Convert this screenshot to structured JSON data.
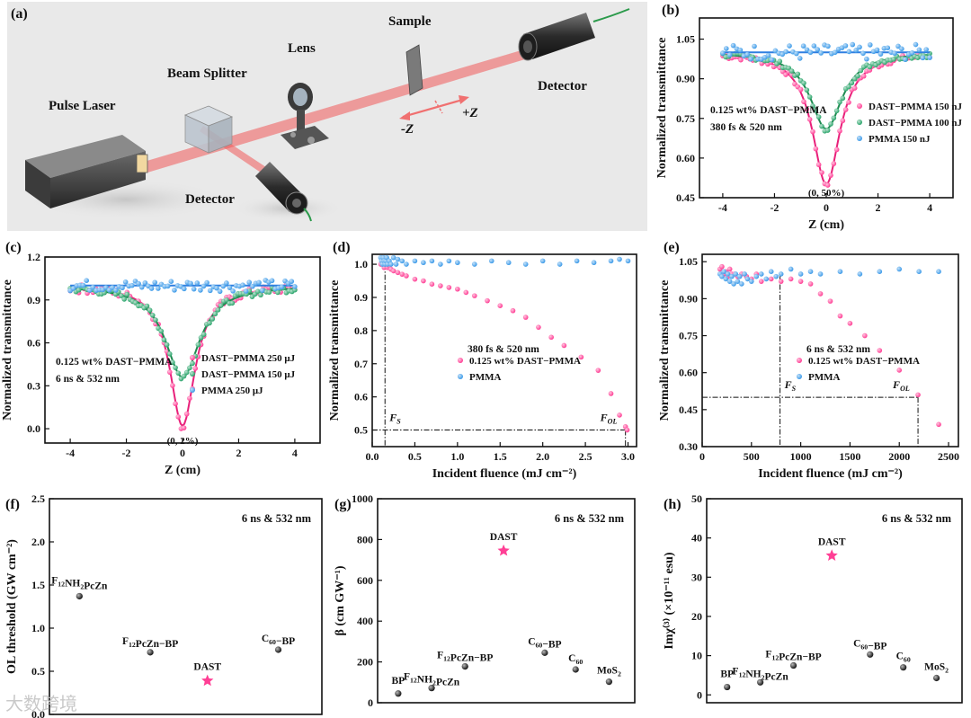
{
  "colors": {
    "pink": "#ff3f95",
    "green": "#2aa56b",
    "blue": "#3d9be9",
    "black": "#151515",
    "fit_pink": "#e8207a",
    "fit_green": "#1e8a50",
    "fit_blue": "#2f7fe0"
  },
  "panel_a": {
    "label": "(a)",
    "labels": {
      "pulse_laser": "Pulse Laser",
      "beam_splitter": "Beam Splitter",
      "lens": "Lens",
      "sample": "Sample",
      "detector_top": "Detector",
      "detector_bottom": "Detector",
      "minus_z": "-Z",
      "plus_z": "+Z"
    }
  },
  "watermark": "大数跨境",
  "chart_data": [
    {
      "id": "b",
      "type": "scatter",
      "panel_label": "(b)",
      "xlabel": "Z (cm)",
      "ylabel": "Normalized transmittance",
      "xlim": [
        -4.9,
        4.9
      ],
      "ylim": [
        0.45,
        1.13
      ],
      "xticks": [
        {
          "v": -4,
          "t": "-4"
        },
        {
          "v": -2,
          "t": "-2"
        },
        {
          "v": 0,
          "t": "0"
        },
        {
          "v": 2,
          "t": "2"
        },
        {
          "v": 4,
          "t": "4"
        }
      ],
      "yticks": [
        {
          "v": 0.45,
          "t": "0.45"
        },
        {
          "v": 0.6,
          "t": "0.60"
        },
        {
          "v": 0.75,
          "t": "0.75"
        },
        {
          "v": 0.9,
          "t": "0.90"
        },
        {
          "v": 1.05,
          "t": "1.05"
        }
      ],
      "text_lines": [
        "0.125 wt% DAST−PMMA",
        "380 fs & 520 nm"
      ],
      "annotation": "(0, 50%)",
      "legend": [
        {
          "name": "DAST−PMMA 150 nJ",
          "color": "pink"
        },
        {
          "name": "DAST−PMMA 100 nJ",
          "color": "green"
        },
        {
          "name": "PMMA 150 nJ",
          "color": "blue"
        }
      ],
      "series": [
        {
          "name": "DAST−PMMA 150 nJ",
          "color": "pink",
          "fit": "fit_pink",
          "depth": 0.5,
          "width": 0.65,
          "noise": 0.012,
          "n": 70
        },
        {
          "name": "DAST−PMMA 100 nJ",
          "color": "green",
          "fit": "fit_green",
          "depth": 0.29,
          "width": 0.75,
          "noise": 0.01,
          "n": 70
        },
        {
          "name": "PMMA 150 nJ",
          "color": "blue",
          "fit": "fit_blue",
          "depth": 0,
          "width": 1,
          "noise": 0.03,
          "n": 60
        }
      ]
    },
    {
      "id": "c",
      "type": "scatter",
      "panel_label": "(c)",
      "xlabel": "Z (cm)",
      "ylabel": "Normalized transmittance",
      "xlim": [
        -4.9,
        4.9
      ],
      "ylim": [
        -0.1,
        1.2
      ],
      "xticks": [
        {
          "v": -4,
          "t": "-4"
        },
        {
          "v": -2,
          "t": "-2"
        },
        {
          "v": 0,
          "t": "0"
        },
        {
          "v": 2,
          "t": "2"
        },
        {
          "v": 4,
          "t": "4"
        }
      ],
      "yticks": [
        {
          "v": 0,
          "t": "0.0"
        },
        {
          "v": 0.3,
          "t": "0.3"
        },
        {
          "v": 0.6,
          "t": "0.6"
        },
        {
          "v": 0.9,
          "t": "0.9"
        },
        {
          "v": 1.2,
          "t": "1.2"
        }
      ],
      "text_lines": [
        "0.125 wt% DAST−PMMA",
        "6 ns & 532 nm"
      ],
      "annotation": "(0, 2%)",
      "legend": [
        {
          "name": "DAST−PMMA 250 μJ",
          "color": "pink"
        },
        {
          "name": "DAST−PMMA 150 μJ",
          "color": "green"
        },
        {
          "name": "PMMA 250 μJ",
          "color": "blue"
        }
      ],
      "series": [
        {
          "name": "DAST−PMMA 250 μJ",
          "color": "pink",
          "fit": "fit_pink",
          "depth": 0.98,
          "width": 0.55,
          "noise": 0.03,
          "n": 80
        },
        {
          "name": "DAST−PMMA 150 μJ",
          "color": "green",
          "fit": "fit_green",
          "depth": 0.64,
          "width": 0.75,
          "noise": 0.025,
          "n": 80
        },
        {
          "name": "PMMA 250 μJ",
          "color": "blue",
          "fit": "fit_blue",
          "depth": 0,
          "width": 1,
          "noise": 0.04,
          "n": 70
        }
      ]
    },
    {
      "id": "d",
      "type": "scatter",
      "panel_label": "(d)",
      "xlabel": "Incident fluence (mJ cm⁻²)",
      "ylabel": "Normalized transmittance",
      "xlim": [
        0,
        3.1
      ],
      "ylim": [
        0.45,
        1.03
      ],
      "xticks": [
        {
          "v": 0,
          "t": "0.0"
        },
        {
          "v": 0.5,
          "t": "0.5"
        },
        {
          "v": 1,
          "t": "1.0"
        },
        {
          "v": 1.5,
          "t": "1.5"
        },
        {
          "v": 2,
          "t": "2.0"
        },
        {
          "v": 2.5,
          "t": "2.5"
        },
        {
          "v": 3,
          "t": "3.0"
        }
      ],
      "yticks": [
        {
          "v": 0.5,
          "t": "0.5"
        },
        {
          "v": 0.6,
          "t": "0.6"
        },
        {
          "v": 0.7,
          "t": "0.7"
        },
        {
          "v": 0.8,
          "t": "0.8"
        },
        {
          "v": 0.9,
          "t": "0.9"
        },
        {
          "v": 1.0,
          "t": "1.0"
        }
      ],
      "text_lines": [
        "380 fs & 520 nm"
      ],
      "legend": [
        {
          "name": "0.125 wt% DAST−PMMA",
          "color": "pink"
        },
        {
          "name": "PMMA",
          "color": "blue"
        }
      ],
      "fs": {
        "x": 0.15,
        "label": "F",
        "sub": "S"
      },
      "fol": {
        "x": 2.97,
        "y": 0.5,
        "label": "F",
        "sub": "OL"
      },
      "series": [
        {
          "name": "0.125 wt% DAST−PMMA",
          "color": "pink",
          "x": [
            0.1,
            0.12,
            0.14,
            0.16,
            0.18,
            0.2,
            0.22,
            0.25,
            0.3,
            0.35,
            0.4,
            0.5,
            0.6,
            0.7,
            0.8,
            0.9,
            1.0,
            1.1,
            1.2,
            1.35,
            1.5,
            1.65,
            1.8,
            1.95,
            2.1,
            2.25,
            2.45,
            2.65,
            2.8,
            2.9,
            2.97,
            2.99
          ],
          "y": [
            1.0,
            1.01,
            0.99,
            1.0,
            0.99,
            0.995,
            0.985,
            0.98,
            0.975,
            0.97,
            0.965,
            0.955,
            0.95,
            0.94,
            0.935,
            0.93,
            0.925,
            0.915,
            0.905,
            0.89,
            0.875,
            0.86,
            0.84,
            0.81,
            0.78,
            0.755,
            0.72,
            0.68,
            0.61,
            0.545,
            0.51,
            0.5
          ]
        },
        {
          "name": "PMMA",
          "color": "blue",
          "x": [
            0.1,
            0.11,
            0.12,
            0.13,
            0.14,
            0.15,
            0.16,
            0.17,
            0.18,
            0.2,
            0.22,
            0.25,
            0.28,
            0.3,
            0.35,
            0.4,
            0.5,
            0.6,
            0.7,
            0.8,
            0.9,
            1.0,
            1.2,
            1.4,
            1.6,
            1.8,
            2.0,
            2.2,
            2.4,
            2.6,
            2.8,
            2.9,
            3.0
          ],
          "y": [
            1.02,
            1.01,
            1.0,
            1.02,
            1.01,
            1.0,
            1.01,
            1.02,
            1.0,
            1.01,
            1.0,
            1.02,
            1.0,
            1.015,
            1.01,
            1.0,
            1.01,
            1.005,
            1.01,
            1.0,
            1.01,
            1.005,
            1.0,
            1.01,
            1.005,
            1.0,
            1.01,
            1.0,
            1.01,
            1.005,
            1.01,
            1.015,
            1.01
          ]
        }
      ]
    },
    {
      "id": "e",
      "type": "scatter",
      "panel_label": "(e)",
      "xlabel": "Incident fluence (mJ cm⁻²)",
      "ylabel": "Normalized transmittance",
      "xlim": [
        0,
        2600
      ],
      "ylim": [
        0.3,
        1.08
      ],
      "xticks": [
        {
          "v": 0,
          "t": "0"
        },
        {
          "v": 500,
          "t": "500"
        },
        {
          "v": 1000,
          "t": "1000"
        },
        {
          "v": 1500,
          "t": "1500"
        },
        {
          "v": 2000,
          "t": "2000"
        },
        {
          "v": 2500,
          "t": "2500"
        }
      ],
      "yticks": [
        {
          "v": 0.3,
          "t": "0.30"
        },
        {
          "v": 0.45,
          "t": "0.45"
        },
        {
          "v": 0.6,
          "t": "0.60"
        },
        {
          "v": 0.75,
          "t": "0.75"
        },
        {
          "v": 0.9,
          "t": "0.90"
        },
        {
          "v": 1.05,
          "t": "1.05"
        }
      ],
      "text_lines": [
        "6 ns & 532 nm"
      ],
      "legend": [
        {
          "name": "0.125 wt% DAST−PMMA",
          "color": "pink"
        },
        {
          "name": "PMMA",
          "color": "blue"
        }
      ],
      "fs": {
        "x": 790,
        "label": "F",
        "sub": "S"
      },
      "fol": {
        "x": 2190,
        "y": 0.5,
        "label": "F",
        "sub": "OL"
      },
      "series": [
        {
          "name": "0.125 wt% DAST−PMMA",
          "color": "pink",
          "x": [
            180,
            200,
            220,
            240,
            260,
            280,
            300,
            330,
            360,
            400,
            450,
            500,
            550,
            600,
            700,
            800,
            900,
            1000,
            1100,
            1200,
            1300,
            1400,
            1500,
            1650,
            1800,
            2000,
            2190,
            2400
          ],
          "y": [
            1.02,
            1.03,
            1.0,
            1.01,
            0.99,
            1.02,
            1.0,
            1.0,
            0.99,
            1.0,
            0.99,
            0.98,
            1.0,
            0.97,
            0.98,
            0.97,
            0.98,
            0.97,
            0.96,
            0.92,
            0.89,
            0.83,
            0.8,
            0.75,
            0.69,
            0.61,
            0.51,
            0.39
          ]
        },
        {
          "name": "PMMA",
          "color": "blue",
          "x": [
            180,
            200,
            220,
            240,
            260,
            280,
            300,
            320,
            340,
            360,
            380,
            400,
            430,
            460,
            500,
            550,
            600,
            650,
            700,
            750,
            800,
            900,
            1000,
            1100,
            1200,
            1400,
            1600,
            1800,
            2000,
            2200,
            2400
          ],
          "y": [
            1.0,
            0.99,
            1.01,
            0.98,
            1.0,
            0.97,
            0.99,
            0.96,
            1.0,
            0.97,
            0.99,
            0.96,
            1.0,
            0.98,
            0.97,
            0.99,
            1.0,
            0.98,
            1.01,
            0.99,
            1.0,
            1.02,
            1.0,
            1.01,
            1.0,
            1.01,
            1.0,
            1.01,
            1.02,
            1.01,
            1.01
          ]
        }
      ]
    },
    {
      "id": "f",
      "type": "scatter",
      "panel_label": "(f)",
      "xlabel": "",
      "ylabel": "OL threshold (GW cm⁻²)",
      "xlim": [
        0,
        10
      ],
      "ylim": [
        0,
        2.5
      ],
      "xticks": [],
      "yticks": [
        {
          "v": 0,
          "t": "0.0"
        },
        {
          "v": 0.5,
          "t": "0.5"
        },
        {
          "v": 1,
          "t": "1.0"
        },
        {
          "v": 1.5,
          "t": "1.5"
        },
        {
          "v": 2,
          "t": "2.0"
        },
        {
          "v": 2.5,
          "t": "2.5"
        }
      ],
      "text_lines": [
        "6 ns & 532 nm"
      ],
      "points": [
        {
          "x": 1.1,
          "y": 1.37,
          "label": "F12NH2PcZn",
          "marker": "dot"
        },
        {
          "x": 3.7,
          "y": 0.72,
          "label": "F12PcZn−BP",
          "marker": "dot"
        },
        {
          "x": 5.8,
          "y": 0.39,
          "label": "DAST",
          "marker": "star"
        },
        {
          "x": 8.4,
          "y": 0.75,
          "label": "C60−BP",
          "marker": "dot"
        }
      ]
    },
    {
      "id": "g",
      "type": "scatter",
      "panel_label": "(g)",
      "xlabel": "",
      "ylabel": "β (cm GW⁻¹)",
      "xlim": [
        0,
        10
      ],
      "ylim": [
        0,
        1000
      ],
      "xticks": [],
      "yticks": [
        {
          "v": 0,
          "t": "0"
        },
        {
          "v": 200,
          "t": "200"
        },
        {
          "v": 400,
          "t": "400"
        },
        {
          "v": 600,
          "t": "600"
        },
        {
          "v": 800,
          "t": "800"
        },
        {
          "v": 1000,
          "t": "1000"
        }
      ],
      "text_lines": [
        "6 ns & 532 nm"
      ],
      "points": [
        {
          "x": 0.8,
          "y": 45,
          "label": "BP",
          "marker": "dot"
        },
        {
          "x": 2.1,
          "y": 72,
          "label": "F12NH2PcZn",
          "marker": "dot"
        },
        {
          "x": 3.4,
          "y": 178,
          "label": "F12PcZn−BP",
          "marker": "dot"
        },
        {
          "x": 4.9,
          "y": 745,
          "label": "DAST",
          "marker": "star"
        },
        {
          "x": 6.5,
          "y": 245,
          "label": "C60−BP",
          "marker": "dot"
        },
        {
          "x": 7.7,
          "y": 163,
          "label": "C60",
          "marker": "dot"
        },
        {
          "x": 9.0,
          "y": 103,
          "label": "MoS2",
          "marker": "dot"
        }
      ]
    },
    {
      "id": "h",
      "type": "scatter",
      "panel_label": "(h)",
      "xlabel": "",
      "ylabel": "Imχ⁽³⁾ (×10⁻¹¹ esu)",
      "xlim": [
        0,
        10
      ],
      "ylim": [
        -2,
        50
      ],
      "xticks": [],
      "yticks": [
        {
          "v": 0,
          "t": "0"
        },
        {
          "v": 10,
          "t": "10"
        },
        {
          "v": 20,
          "t": "20"
        },
        {
          "v": 30,
          "t": "30"
        },
        {
          "v": 40,
          "t": "40"
        },
        {
          "v": 50,
          "t": "50"
        }
      ],
      "text_lines": [
        "6 ns & 532 nm"
      ],
      "points": [
        {
          "x": 0.8,
          "y": 2,
          "label": "BP",
          "marker": "dot"
        },
        {
          "x": 2.1,
          "y": 3.2,
          "label": "F12NH2PcZn",
          "marker": "dot"
        },
        {
          "x": 3.4,
          "y": 7.5,
          "label": "F12PcZn−BP",
          "marker": "dot"
        },
        {
          "x": 4.9,
          "y": 35.5,
          "label": "DAST",
          "marker": "star"
        },
        {
          "x": 6.4,
          "y": 10.3,
          "label": "C60−BP",
          "marker": "dot"
        },
        {
          "x": 7.7,
          "y": 7,
          "label": "C60",
          "marker": "dot"
        },
        {
          "x": 9.0,
          "y": 4.3,
          "label": "MoS2",
          "marker": "dot"
        }
      ]
    }
  ]
}
